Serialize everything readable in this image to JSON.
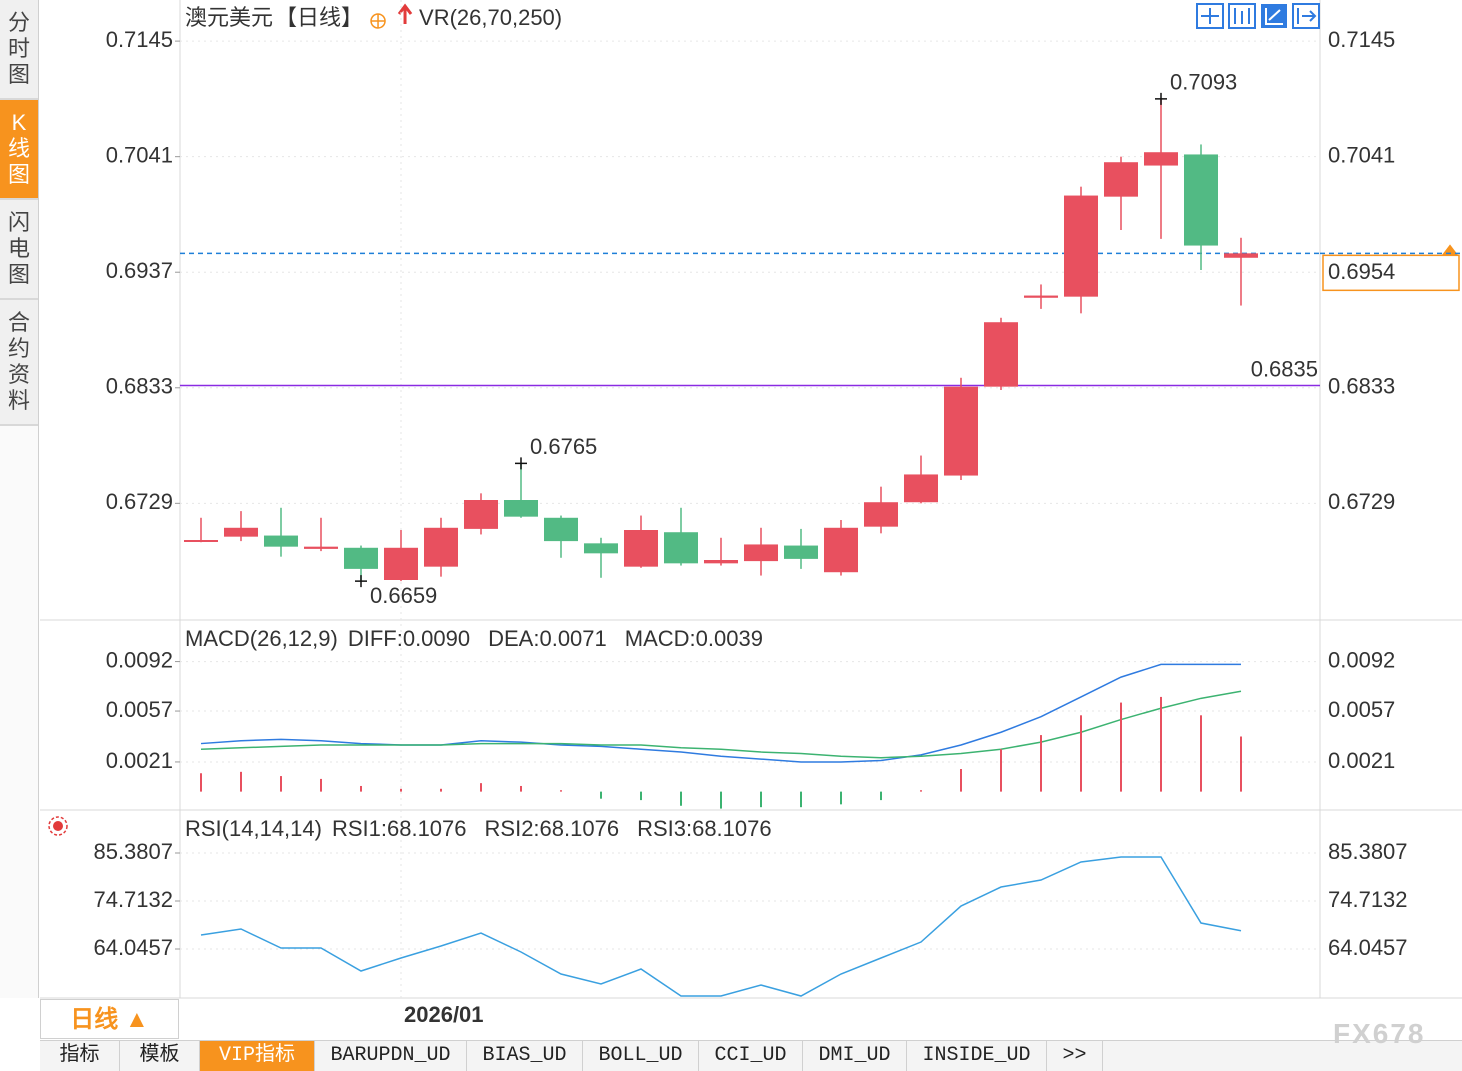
{
  "sidebar_tabs": [
    "分时图",
    "K线图",
    "闪电图",
    "合约资料"
  ],
  "chart_data": [
    {
      "type": "candlestick",
      "title": "澳元美元",
      "period": "【日线】",
      "indicator": "VR(26,70,250)",
      "categories": [
        null,
        null,
        null,
        null,
        null,
        "2026/01",
        null,
        null,
        null,
        null,
        null,
        null,
        null,
        null,
        null,
        null,
        null,
        null,
        null,
        null,
        null,
        null,
        null,
        null,
        null,
        null,
        null
      ],
      "open": [
        0.6695,
        0.6699,
        0.67,
        0.6688,
        0.6689,
        0.666,
        0.6672,
        0.6706,
        0.6732,
        0.6716,
        0.6693,
        0.6672,
        0.6703,
        0.6675,
        0.6677,
        0.6691,
        0.6667,
        0.6708,
        0.673,
        0.6754,
        0.6834,
        0.6914,
        0.6915,
        0.7005,
        0.7033,
        0.7043,
        0.695
      ],
      "high": [
        0.6716,
        0.6722,
        0.6725,
        0.6716,
        0.6691,
        0.6705,
        0.6716,
        0.6738,
        0.6765,
        0.6718,
        0.6698,
        0.6718,
        0.6725,
        0.6698,
        0.6707,
        0.6706,
        0.6714,
        0.6744,
        0.6772,
        0.6842,
        0.6896,
        0.6926,
        0.7014,
        0.7041,
        0.7093,
        0.7052,
        0.6968
      ],
      "low": [
        0.6694,
        0.6695,
        0.6681,
        0.6686,
        0.6659,
        0.6659,
        0.6663,
        0.6701,
        0.6716,
        0.668,
        0.6662,
        0.6671,
        0.6673,
        0.6673,
        0.6664,
        0.667,
        0.6664,
        0.6702,
        0.6729,
        0.675,
        0.6831,
        0.6904,
        0.69,
        0.6975,
        0.6967,
        0.6939,
        0.6907
      ],
      "close": [
        0.6696,
        0.6707,
        0.669,
        0.669,
        0.667,
        0.6689,
        0.6707,
        0.6732,
        0.6717,
        0.6695,
        0.6684,
        0.6705,
        0.6675,
        0.6678,
        0.6692,
        0.6679,
        0.6707,
        0.673,
        0.6755,
        0.6834,
        0.6892,
        0.6916,
        0.7006,
        0.7036,
        0.7045,
        0.6961,
        0.6954
      ],
      "up_color": "#e8505f",
      "down_color": "#52ba84",
      "ylim": [
        0.6624,
        0.7182
      ],
      "yticks": [
        0.7145,
        0.7041,
        0.6937,
        0.6833,
        0.6729
      ],
      "grid": true,
      "annotations": [
        {
          "index": 24,
          "value": 0.7093,
          "color": "#e8505f"
        },
        {
          "index": 8,
          "value": 0.6765,
          "color": "#e8505f"
        },
        {
          "index": 4,
          "value": 0.6659,
          "color": "#52ba84"
        }
      ],
      "hlines": [
        {
          "value": 0.6835,
          "color": "#8a2be2",
          "style": "solid"
        },
        {
          "value": 0.6954,
          "color": "#1e7fd8",
          "style": "dashed",
          "label_color": "#f7931e"
        }
      ]
    },
    {
      "type": "macd",
      "title": "MACD(26,12,9)",
      "series": [
        {
          "name": "DIFF:0.0090",
          "color": "#2f7be0",
          "style": "line",
          "values": [
            0.0034,
            0.0036,
            0.0037,
            0.0036,
            0.0034,
            0.0033,
            0.0033,
            0.0036,
            0.0035,
            0.0033,
            0.0032,
            0.003,
            0.0028,
            0.0025,
            0.0023,
            0.0021,
            0.0021,
            0.0022,
            0.0026,
            0.0033,
            0.0042,
            0.0053,
            0.0067,
            0.0081,
            0.009,
            0.009,
            0.009
          ]
        },
        {
          "name": "DEA:0.0071",
          "color": "#3cb371",
          "style": "line",
          "values": [
            0.003,
            0.0031,
            0.0032,
            0.0033,
            0.0033,
            0.0033,
            0.0033,
            0.0034,
            0.0034,
            0.0034,
            0.0033,
            0.0033,
            0.0031,
            0.003,
            0.0028,
            0.0027,
            0.0025,
            0.0024,
            0.0025,
            0.0027,
            0.003,
            0.0035,
            0.0042,
            0.0051,
            0.0059,
            0.0066,
            0.0071
          ]
        },
        {
          "name": "MACD:0.0039",
          "color": "#5bbcec",
          "style": "bar",
          "values": [
            0.0013,
            0.0014,
            0.0011,
            0.0009,
            0.0004,
            0.0002,
            0.0002,
            0.0006,
            0.0004,
            0.0001,
            -0.0005,
            -0.0006,
            -0.001,
            -0.0012,
            -0.0011,
            -0.0011,
            -0.0009,
            -0.0006,
            0.0001,
            0.0016,
            0.003,
            0.004,
            0.0054,
            0.0063,
            0.0067,
            0.0054,
            0.0039
          ]
        }
      ],
      "up_color": "#e8505f",
      "down_color": "#3cb371",
      "ylim": [
        -0.0013,
        0.012
      ],
      "yticks": [
        0.0092,
        0.0057,
        0.0021
      ],
      "grid": true
    },
    {
      "type": "line",
      "title": "RSI(14,14,14)",
      "series": [
        {
          "name": "RSI1:68.1076",
          "color": "#3aa0e0",
          "values": [
            67.16,
            68.49,
            64.27,
            64.27,
            59.16,
            62.05,
            64.71,
            67.6,
            63.38,
            58.49,
            56.27,
            59.6,
            53.6,
            53.6,
            56.04,
            53.6,
            58.49,
            62.05,
            65.6,
            73.6,
            77.82,
            79.38,
            83.38,
            84.49,
            84.49,
            69.82,
            68.11
          ]
        }
      ],
      "legend_extra": [
        {
          "name": "RSI2:68.1076",
          "color": "#52c48a"
        },
        {
          "name": "RSI3:68.1076",
          "color": "#40b8d8"
        }
      ],
      "ylim": [
        53.16,
        94.49
      ],
      "yticks": [
        85.3807,
        74.7132,
        64.0457
      ],
      "grid": true
    }
  ],
  "footer": {
    "period_button": "日线 ▲",
    "tabs": [
      "指标",
      "模板",
      "VIP指标",
      "BARUPDN_UD",
      "BIAS_UD",
      "BOLL_UD",
      "CCI_UD",
      "DMI_UD",
      "INSIDE_UD",
      ">>"
    ],
    "watermark": "FX678"
  }
}
